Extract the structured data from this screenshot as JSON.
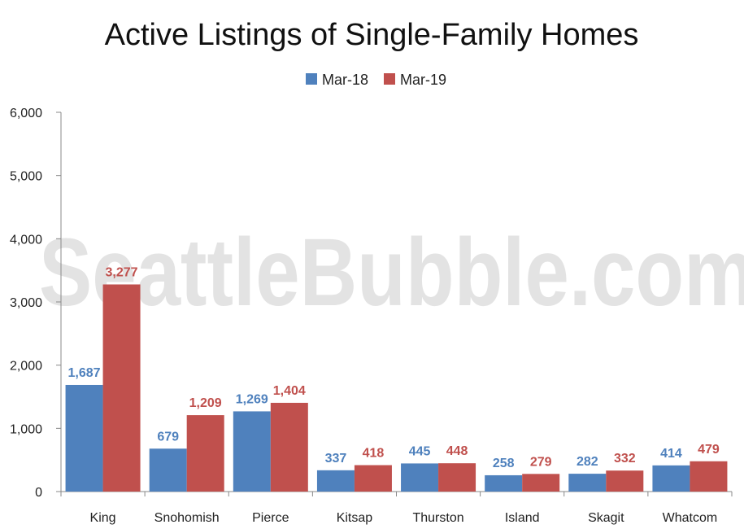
{
  "chart_data": {
    "type": "bar",
    "title": "Active Listings of Single-Family Homes",
    "watermark": "SeattleBubble.com",
    "categories": [
      "King",
      "Snohomish",
      "Pierce",
      "Kitsap",
      "Thurston",
      "Island",
      "Skagit",
      "Whatcom"
    ],
    "series": [
      {
        "name": "Mar-18",
        "color": "#4f81bd",
        "values": [
          1687,
          679,
          1269,
          337,
          445,
          258,
          282,
          414
        ],
        "labels": [
          "1,687",
          "679",
          "1,269",
          "337",
          "445",
          "258",
          "282",
          "414"
        ]
      },
      {
        "name": "Mar-19",
        "color": "#c0504d",
        "values": [
          3277,
          1209,
          1404,
          418,
          448,
          279,
          332,
          479
        ],
        "labels": [
          "3,277",
          "1,209",
          "1,404",
          "418",
          "448",
          "279",
          "332",
          "479"
        ]
      }
    ],
    "ylim": [
      0,
      6000
    ],
    "yticks": [
      0,
      1000,
      2000,
      3000,
      4000,
      5000,
      6000
    ],
    "ytick_labels": [
      "0",
      "1,000",
      "2,000",
      "3,000",
      "4,000",
      "5,000",
      "6,000"
    ],
    "xlabel": "",
    "ylabel": "",
    "legend_position": "top-center",
    "grid": false
  }
}
